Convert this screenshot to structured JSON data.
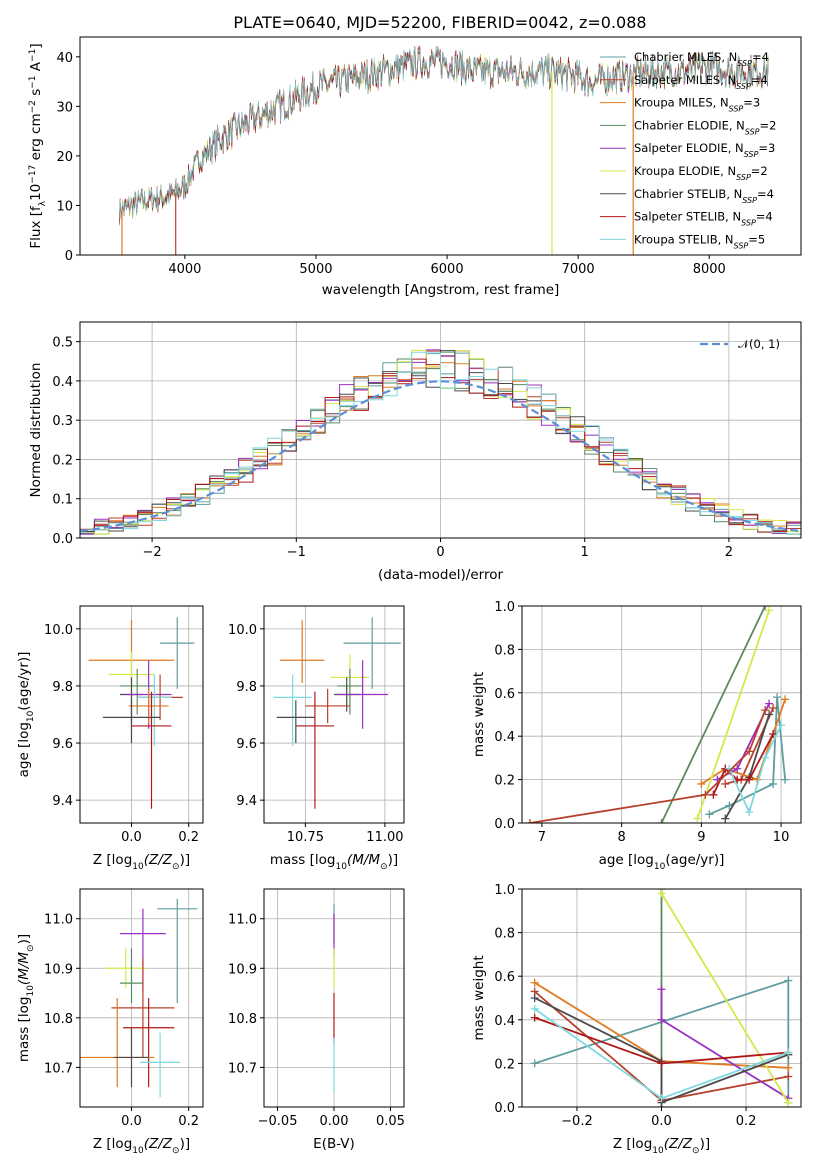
{
  "figure_title": "PLATE=0640, MJD=52200, FIBERID=0042, z=0.088",
  "models": [
    {
      "name": "Chabrier MILES",
      "nssp": 4,
      "color": "#5f9ea0"
    },
    {
      "name": "Salpeter MILES",
      "nssp": 4,
      "color": "#b8412e"
    },
    {
      "name": "Kroupa MILES",
      "nssp": 3,
      "color": "#e07b22"
    },
    {
      "name": "Chabrier ELODIE",
      "nssp": 2,
      "color": "#5b8a5e"
    },
    {
      "name": "Salpeter ELODIE",
      "nssp": 3,
      "color": "#9b30c0"
    },
    {
      "name": "Kroupa ELODIE",
      "nssp": 2,
      "color": "#d4e84a"
    },
    {
      "name": "Chabrier STELIB",
      "nssp": 4,
      "color": "#4a4a4a"
    },
    {
      "name": "Salpeter STELIB",
      "nssp": 4,
      "color": "#b01818"
    },
    {
      "name": "Kroupa STELIB",
      "nssp": 5,
      "color": "#7fd8e0"
    }
  ],
  "legend_suffix": "N",
  "legend_sub": "SSP",
  "chart_data": [
    {
      "id": "spectrum",
      "type": "line",
      "xlabel": "wavelength [Angstrom, rest frame]",
      "ylabel": "Flux [f",
      "ylabel_parts": [
        "Flux [f",
        "λ",
        "10",
        "−17",
        " erg cm",
        "−2",
        " s",
        "−1",
        " A",
        "−1",
        "]"
      ],
      "xlim": [
        3200,
        8700
      ],
      "ylim": [
        0,
        44
      ],
      "xticks": [
        4000,
        5000,
        6000,
        7000,
        8000
      ],
      "yticks": [
        0,
        10,
        20,
        30,
        40
      ],
      "grid": false,
      "legend_position": "top-right",
      "continuum_anchors": [
        [
          3500,
          9
        ],
        [
          3700,
          11
        ],
        [
          3900,
          12
        ],
        [
          4000,
          14
        ],
        [
          4100,
          19
        ],
        [
          4300,
          24
        ],
        [
          4500,
          27
        ],
        [
          4800,
          31
        ],
        [
          5000,
          34
        ],
        [
          5200,
          35
        ],
        [
          5500,
          37
        ],
        [
          5800,
          39
        ],
        [
          6000,
          39
        ],
        [
          6200,
          37
        ],
        [
          6500,
          37
        ],
        [
          6800,
          37
        ],
        [
          7000,
          36
        ],
        [
          7100,
          35
        ],
        [
          7300,
          36
        ],
        [
          7600,
          37
        ],
        [
          7800,
          37
        ],
        [
          8000,
          38
        ],
        [
          8200,
          37
        ],
        [
          8450,
          37
        ]
      ],
      "spikes": [
        [
          3520,
          0
        ],
        [
          3930,
          0
        ],
        [
          6800,
          0
        ],
        [
          7420,
          0
        ]
      ]
    },
    {
      "id": "residuals",
      "type": "histogram",
      "xlabel": "(data-model)/error",
      "ylabel": "Normed distribution",
      "xlim": [
        -2.5,
        2.5
      ],
      "ylim": [
        0,
        0.55
      ],
      "xticks": [
        -2,
        -1,
        0,
        1,
        2
      ],
      "yticks": [
        0.0,
        0.1,
        0.2,
        0.3,
        0.4,
        0.5
      ],
      "grid": true,
      "legend_position": "top-right",
      "reference_curve": {
        "label": "𝒩(0, 1)",
        "mean": 0,
        "sigma": 1,
        "color": "#5b8fd8"
      },
      "bins": {
        "start": -2.5,
        "width": 0.1
      }
    },
    {
      "id": "age-vs-Z",
      "type": "scatter",
      "xlabel": "Z [log",
      "xlabel_parts": [
        "Z [log",
        "10",
        "(Z/Z",
        "⊙",
        ")]"
      ],
      "ylabel_parts": [
        "age  [log",
        "10",
        "(age/yr)]"
      ],
      "xlim": [
        -0.18,
        0.25
      ],
      "ylim": [
        9.32,
        10.08
      ],
      "xticks": [
        0.0,
        0.2
      ],
      "yticks": [
        9.4,
        9.6,
        9.8,
        10.0
      ],
      "grid": true,
      "points": [
        {
          "model": 2,
          "x": 0.0,
          "y": 9.89,
          "xerr": 0.15,
          "yerr": [
            0.08,
            0.14
          ]
        },
        {
          "model": 0,
          "x": 0.16,
          "y": 9.95,
          "xerr": 0.06,
          "yerr": [
            0.16,
            0.09
          ]
        },
        {
          "model": 5,
          "x": 0.0,
          "y": 9.84,
          "xerr": 0.08,
          "yerr": [
            0.1,
            0.08
          ]
        },
        {
          "model": 3,
          "x": 0.02,
          "y": 9.8,
          "xerr": 0.06,
          "yerr": [
            0.1,
            0.06
          ]
        },
        {
          "model": 6,
          "x": 0.0,
          "y": 9.77,
          "xerr": 0.04,
          "yerr": [
            0.1,
            0.06
          ]
        },
        {
          "model": 4,
          "x": 0.06,
          "y": 9.77,
          "xerr": 0.08,
          "yerr": [
            0.12,
            0.12
          ]
        },
        {
          "model": 1,
          "x": 0.1,
          "y": 9.76,
          "xerr": 0.08,
          "yerr": [
            0.08,
            0.08
          ]
        },
        {
          "model": 8,
          "x": 0.08,
          "y": 9.76,
          "xerr": 0.06,
          "yerr": [
            0.17,
            0.08
          ]
        },
        {
          "model": 2,
          "x": 0.06,
          "y": 9.73,
          "xerr": 0.07,
          "yerr": [
            0.06,
            0.06
          ]
        },
        {
          "model": 6,
          "x": 0.0,
          "y": 9.69,
          "xerr": 0.1,
          "yerr": [
            0.09,
            0.06
          ]
        },
        {
          "model": 7,
          "x": 0.07,
          "y": 9.66,
          "xerr": 0.07,
          "yerr": [
            0.29,
            0.12
          ]
        }
      ]
    },
    {
      "id": "age-vs-mass",
      "type": "scatter",
      "xlabel_parts": [
        "mass [log",
        "10",
        "(M/M",
        "⊙",
        ")]"
      ],
      "xlim": [
        10.62,
        11.06
      ],
      "ylim": [
        9.32,
        10.08
      ],
      "xticks": [
        10.75,
        11.0
      ],
      "yticks": [
        9.4,
        9.6,
        9.8,
        10.0
      ],
      "grid": true,
      "points": [
        {
          "model": 2,
          "x": 10.74,
          "y": 9.89,
          "xerr": 0.07,
          "yerr": [
            0.08,
            0.14
          ]
        },
        {
          "model": 0,
          "x": 10.96,
          "y": 9.95,
          "xerr": 0.09,
          "yerr": [
            0.16,
            0.09
          ]
        },
        {
          "model": 5,
          "x": 10.89,
          "y": 9.83,
          "xerr": 0.06,
          "yerr": [
            0.1,
            0.08
          ]
        },
        {
          "model": 3,
          "x": 10.89,
          "y": 9.8,
          "xerr": 0.04,
          "yerr": [
            0.1,
            0.06
          ]
        },
        {
          "model": 6,
          "x": 10.88,
          "y": 9.77,
          "xerr": 0.04,
          "yerr": [
            0.06,
            0.06
          ]
        },
        {
          "model": 4,
          "x": 10.93,
          "y": 9.77,
          "xerr": 0.08,
          "yerr": [
            0.12,
            0.12
          ]
        },
        {
          "model": 1,
          "x": 10.82,
          "y": 9.73,
          "xerr": 0.07,
          "yerr": [
            0.06,
            0.06
          ]
        },
        {
          "model": 8,
          "x": 10.71,
          "y": 9.76,
          "xerr": 0.06,
          "yerr": [
            0.17,
            0.08
          ]
        },
        {
          "model": 6,
          "x": 10.72,
          "y": 9.69,
          "xerr": 0.06,
          "yerr": [
            0.09,
            0.06
          ]
        },
        {
          "model": 7,
          "x": 10.78,
          "y": 9.66,
          "xerr": 0.06,
          "yerr": [
            0.29,
            0.12
          ]
        }
      ]
    },
    {
      "id": "weight-vs-age",
      "type": "line",
      "xlabel_parts": [
        "age  [log",
        "10",
        "(age/yr)]"
      ],
      "ylabel": "mass weight",
      "xlim": [
        6.75,
        10.25
      ],
      "ylim": [
        0,
        1.0
      ],
      "xticks": [
        7,
        8,
        9,
        10
      ],
      "yticks": [
        0.0,
        0.2,
        0.4,
        0.6,
        0.8,
        1.0
      ],
      "grid": true,
      "series": [
        {
          "model": 0,
          "x": [
            9.1,
            9.35,
            9.9,
            9.95,
            10.05
          ],
          "y": [
            0.04,
            0.08,
            0.18,
            0.58,
            0.2
          ]
        },
        {
          "model": 1,
          "x": [
            9.3,
            9.5,
            9.9
          ],
          "y": [
            0.18,
            0.2,
            0.53
          ]
        },
        {
          "model": 2,
          "x": [
            9.0,
            9.3,
            9.7,
            10.05
          ],
          "y": [
            0.18,
            0.25,
            0.2,
            0.57
          ]
        },
        {
          "model": 3,
          "x": [
            8.5,
            9.8
          ],
          "y": [
            0.0,
            1.0
          ]
        },
        {
          "model": 4,
          "x": [
            9.2,
            9.45,
            9.85
          ],
          "y": [
            0.2,
            0.25,
            0.55
          ]
        },
        {
          "model": 5,
          "x": [
            8.95,
            9.85
          ],
          "y": [
            0.02,
            0.98
          ]
        },
        {
          "model": 6,
          "x": [
            9.3,
            9.6,
            9.85
          ],
          "y": [
            0.02,
            0.21,
            0.5
          ]
        },
        {
          "model": 7,
          "x": [
            9.15,
            9.3,
            9.45,
            9.6,
            9.9
          ],
          "y": [
            0.13,
            0.25,
            0.2,
            0.2,
            0.41
          ]
        },
        {
          "model": 8,
          "x": [
            9.35,
            9.6,
            9.8,
            10.0
          ],
          "y": [
            0.25,
            0.05,
            0.3,
            0.45
          ]
        },
        {
          "model": 1,
          "x": [
            6.85,
            9.05,
            9.6,
            9.8
          ],
          "y": [
            0.0,
            0.13,
            0.33,
            0.52
          ]
        }
      ]
    },
    {
      "id": "mass-vs-Z",
      "type": "scatter",
      "xlabel_parts": [
        "Z [log",
        "10",
        "(Z/Z",
        "⊙",
        ")]"
      ],
      "ylabel_parts": [
        "mass [log",
        "10",
        "(M/M",
        "⊙",
        ")]"
      ],
      "xlim": [
        -0.18,
        0.25
      ],
      "ylim": [
        10.62,
        11.06
      ],
      "xticks": [
        0.0,
        0.2
      ],
      "yticks": [
        10.7,
        10.8,
        10.9,
        11.0
      ],
      "grid": true,
      "points": [
        {
          "model": 0,
          "x": 0.16,
          "y": 11.02,
          "xerr": 0.07,
          "yerr": [
            0.19,
            0.02
          ]
        },
        {
          "model": 4,
          "x": 0.04,
          "y": 10.97,
          "xerr": 0.08,
          "yerr": [
            0.12,
            0.05
          ]
        },
        {
          "model": 5,
          "x": -0.02,
          "y": 10.9,
          "xerr": 0.07,
          "yerr": [
            0.04,
            0.04
          ]
        },
        {
          "model": 3,
          "x": 0.0,
          "y": 10.87,
          "xerr": 0.04,
          "yerr": [
            0.04,
            0.07
          ]
        },
        {
          "model": 1,
          "x": 0.04,
          "y": 10.82,
          "xerr": 0.11,
          "yerr": [
            0.1,
            0.1
          ]
        },
        {
          "model": 7,
          "x": 0.06,
          "y": 10.78,
          "xerr": 0.09,
          "yerr": [
            0.12,
            0.06
          ]
        },
        {
          "model": 2,
          "x": -0.05,
          "y": 10.72,
          "xerr": 0.13,
          "yerr": [
            0.06,
            0.12
          ]
        },
        {
          "model": 6,
          "x": 0.0,
          "y": 10.72,
          "xerr": 0.06,
          "yerr": [
            0.06,
            0.06
          ]
        },
        {
          "model": 8,
          "x": 0.1,
          "y": 10.71,
          "xerr": 0.07,
          "yerr": [
            0.07,
            0.06
          ]
        }
      ]
    },
    {
      "id": "mass-vs-EBV",
      "type": "scatter",
      "xlabel": "E(B-V)",
      "xlim": [
        -0.062,
        0.062
      ],
      "ylim": [
        10.62,
        11.06
      ],
      "xticks": [
        -0.05,
        0.0,
        0.05
      ],
      "yticks": [
        10.7,
        10.8,
        10.9,
        11.0
      ],
      "grid": true,
      "points": [
        {
          "model": 0,
          "x": 0.0,
          "y": 11.0,
          "xerr": 0.0,
          "yerr": [
            0.05,
            0.03
          ]
        },
        {
          "model": 4,
          "x": 0.0,
          "y": 10.97,
          "xerr": 0.0,
          "yerr": [
            0.05,
            0.04
          ]
        },
        {
          "model": 5,
          "x": 0.0,
          "y": 10.9,
          "xerr": 0.0,
          "yerr": [
            0.04,
            0.04
          ]
        },
        {
          "model": 7,
          "x": 0.0,
          "y": 10.8,
          "xerr": 0.0,
          "yerr": [
            0.05,
            0.05
          ]
        },
        {
          "model": 8,
          "x": 0.0,
          "y": 10.7,
          "xerr": 0.0,
          "yerr": [
            0.05,
            0.06
          ]
        }
      ]
    },
    {
      "id": "weight-vs-Z",
      "type": "line",
      "xlabel_parts": [
        "Z [log",
        "10",
        "(Z/Z",
        "⊙",
        ")]"
      ],
      "ylabel": "mass weight",
      "xlim": [
        -0.33,
        0.33
      ],
      "ylim": [
        0,
        1.0
      ],
      "xticks": [
        -0.2,
        0.0,
        0.2
      ],
      "yticks": [
        0.0,
        0.2,
        0.4,
        0.6,
        0.8,
        1.0
      ],
      "grid": true,
      "series": [
        {
          "model": 0,
          "x": [
            -0.3,
            0.3,
            0.3
          ],
          "y": [
            0.2,
            0.58,
            0.02
          ]
        },
        {
          "model": 1,
          "x": [
            -0.3,
            0.0,
            0.3
          ],
          "y": [
            0.53,
            0.03,
            0.14
          ]
        },
        {
          "model": 2,
          "x": [
            -0.3,
            0.0,
            0.3
          ],
          "y": [
            0.57,
            0.21,
            0.18
          ]
        },
        {
          "model": 3,
          "x": [
            0.0,
            0.0
          ],
          "y": [
            1.0,
            0.0
          ]
        },
        {
          "model": 4,
          "x": [
            0.0,
            0.0,
            0.3
          ],
          "y": [
            0.54,
            0.4,
            0.04
          ]
        },
        {
          "model": 5,
          "x": [
            0.0,
            0.3
          ],
          "y": [
            0.98,
            0.02
          ]
        },
        {
          "model": 6,
          "x": [
            -0.3,
            0.0,
            0.0,
            0.3
          ],
          "y": [
            0.5,
            0.21,
            0.02,
            0.24
          ]
        },
        {
          "model": 7,
          "x": [
            -0.3,
            0.0,
            0.3
          ],
          "y": [
            0.41,
            0.2,
            0.25
          ]
        },
        {
          "model": 8,
          "x": [
            -0.3,
            0.0,
            0.3
          ],
          "y": [
            0.45,
            0.04,
            0.25
          ]
        }
      ]
    }
  ]
}
